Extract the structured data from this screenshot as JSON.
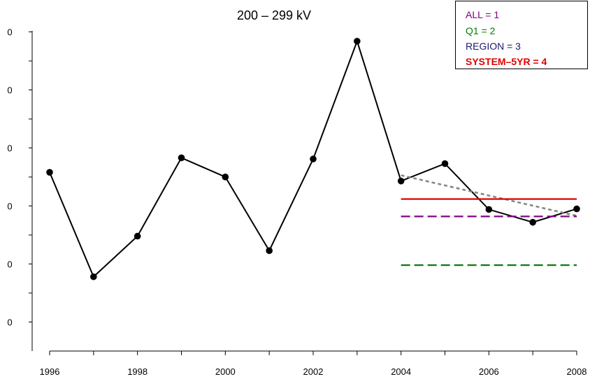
{
  "chart_data": {
    "type": "line",
    "title": "200 – 299 kV",
    "xlabel": "",
    "ylabel": "",
    "xlim": [
      1995.8,
      2008.2
    ],
    "ylim": [
      0,
      6
    ],
    "x_ticks": [
      1996,
      1998,
      2000,
      2002,
      2004,
      2006,
      2008
    ],
    "y_ticks": [
      0.5,
      1.5,
      2.5,
      3.5,
      4.5,
      5.5
    ],
    "y_tick_labels": [
      "0",
      "0",
      "0",
      "0",
      "0",
      "0"
    ],
    "series": [
      {
        "x": [
          1996,
          1997,
          1998,
          1999,
          2000,
          2001,
          2002,
          2003,
          2004,
          2005,
          2006,
          2007,
          2008
        ],
        "y": [
          3.08,
          1.28,
          1.98,
          3.33,
          3.0,
          1.73,
          3.31,
          5.34,
          2.93,
          3.23,
          2.44,
          2.22,
          2.45
        ],
        "color": "#000000",
        "style": "solid-markers"
      },
      {
        "x": [
          2004,
          2008
        ],
        "y": [
          3.03,
          2.33
        ],
        "color": "#888888",
        "style": "dotted"
      },
      {
        "x": [
          2004,
          2008
        ],
        "y": [
          2.62,
          2.62
        ],
        "color": "#e00000",
        "style": "solid"
      },
      {
        "x": [
          2004,
          2008
        ],
        "y": [
          2.32,
          2.32
        ],
        "color": "#800080",
        "style": "dashed"
      },
      {
        "x": [
          2004,
          2008
        ],
        "y": [
          1.48,
          1.48
        ],
        "color": "#007000",
        "style": "dashed"
      }
    ],
    "legend": {
      "position": "top-right",
      "entries": [
        {
          "text": "ALL = 1",
          "color": "#800080"
        },
        {
          "text": "Q1 = 2",
          "color": "#008000"
        },
        {
          "text": "REGION = 3",
          "color": "#1a1a6e"
        },
        {
          "text": "SYSTEM–5YR = 4",
          "color": "#e00000",
          "bold": true
        }
      ]
    }
  }
}
